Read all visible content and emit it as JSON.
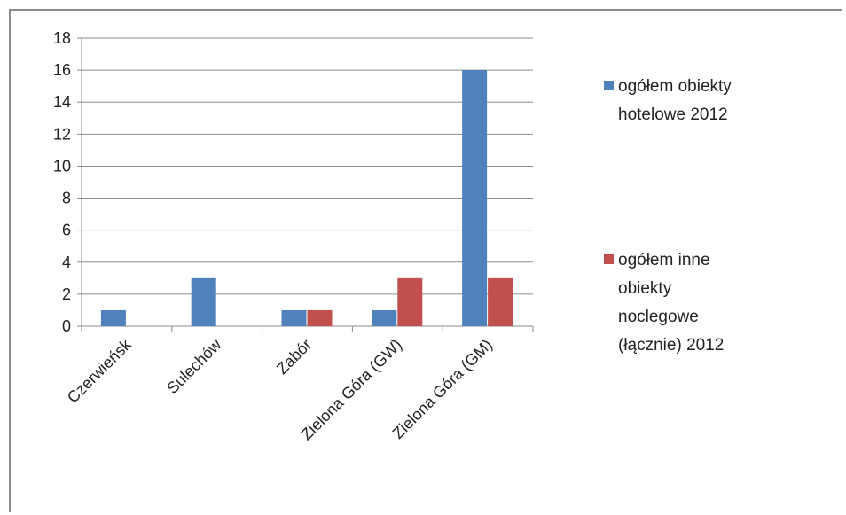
{
  "chart_data": {
    "type": "bar",
    "title": "",
    "xlabel": "",
    "ylabel": "",
    "categories": [
      "Czerwieńsk",
      "Sulechów",
      "Zabór",
      "Zielona Góra (GW)",
      "Zielona Góra (GM)"
    ],
    "series": [
      {
        "name": "ogółem obiekty hotelowe 2012",
        "color": "#4F81BD",
        "values": [
          1,
          3,
          1,
          1,
          16
        ]
      },
      {
        "name": "ogółem inne obiekty noclegowe (łącznie) 2012",
        "color": "#C0504D",
        "values": [
          0,
          0,
          1,
          3,
          3
        ]
      }
    ],
    "ylim": [
      0,
      18
    ],
    "yticks": [
      "0",
      "2",
      "4",
      "6",
      "8",
      "10",
      "12",
      "14",
      "16",
      "18"
    ],
    "grid": true,
    "legend_position": "right",
    "legend": [
      {
        "lines": [
          "ogółem obiekty",
          "hotelowe 2012"
        ]
      },
      {
        "lines": [
          "ogółem inne",
          "obiekty",
          "noclegowe",
          "(łącznie) 2012"
        ]
      }
    ]
  }
}
